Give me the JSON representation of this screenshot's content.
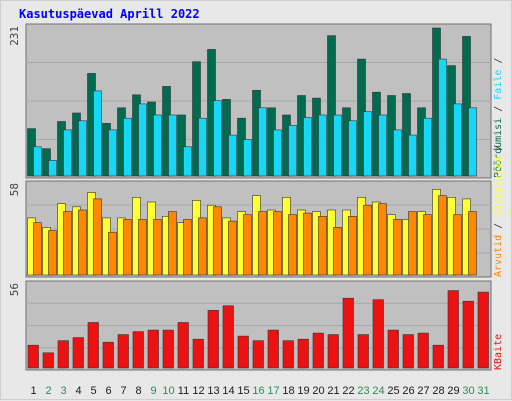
{
  "title": "Kasutuspäevad Aprill 2022",
  "colors": {
    "panel_bg": "#c0c0c0",
    "hits_dark": "#006b4f",
    "files": "#17d7f7",
    "pages_yellow": "#ffff33",
    "visits_orange": "#ff8800",
    "kbytes_red": "#ee1111",
    "weekday_label": "#1a6b1a",
    "weekend_label": "#1a7a3a",
    "title": "#0000ff"
  },
  "chart_data": [
    {
      "type": "bar",
      "panel": "hits-files",
      "ymax_label": "231",
      "ylim": [
        0,
        231
      ],
      "categories": [
        "1",
        "2",
        "3",
        "4",
        "5",
        "6",
        "7",
        "8",
        "9",
        "10",
        "11",
        "12",
        "13",
        "14",
        "15",
        "16",
        "17",
        "18",
        "19",
        "20",
        "21",
        "22",
        "23",
        "24",
        "25",
        "26",
        "27",
        "28",
        "29",
        "30",
        "31"
      ],
      "series": [
        {
          "name": "Pöördumisi",
          "color": "#006b4f",
          "values": [
            73,
            42,
            84,
            97,
            158,
            81,
            105,
            125,
            114,
            138,
            94,
            176,
            195,
            118,
            89,
            132,
            105,
            94,
            124,
            120,
            216,
            105,
            180,
            129,
            124,
            127,
            105,
            229,
            170,
            215,
            0
          ]
        },
        {
          "name": "Faile",
          "color": "#17d7f7",
          "values": [
            45,
            24,
            71,
            85,
            131,
            71,
            89,
            111,
            94,
            94,
            45,
            89,
            116,
            63,
            56,
            105,
            71,
            78,
            90,
            94,
            94,
            85,
            99,
            94,
            71,
            63,
            89,
            180,
            111,
            105,
            0
          ]
        }
      ],
      "right_label": [
        "Pöördumisi",
        " / ",
        "Faile",
        " / "
      ]
    },
    {
      "type": "bar",
      "panel": "pages-visits",
      "ymax_label": "58",
      "ylim": [
        0,
        58
      ],
      "categories": [
        "1",
        "2",
        "3",
        "4",
        "5",
        "6",
        "7",
        "8",
        "9",
        "10",
        "11",
        "12",
        "13",
        "14",
        "15",
        "16",
        "17",
        "18",
        "19",
        "20",
        "21",
        "22",
        "23",
        "24",
        "25",
        "26",
        "27",
        "28",
        "29",
        "30",
        "31"
      ],
      "series": [
        {
          "name": "Külastajad",
          "color": "#ffff33",
          "values": [
            36,
            30,
            45,
            43,
            52,
            36,
            36,
            49,
            46,
            37,
            33,
            47,
            44,
            36,
            40,
            50,
            41,
            49,
            41,
            40,
            41,
            41,
            49,
            46,
            38,
            35,
            40,
            54,
            49,
            48,
            0
          ]
        },
        {
          "name": "Arvutid",
          "color": "#ff8800",
          "values": [
            33,
            28,
            40,
            41,
            48,
            27,
            35,
            35,
            35,
            40,
            35,
            36,
            43,
            34,
            38,
            40,
            40,
            38,
            39,
            37,
            30,
            37,
            44,
            45,
            35,
            40,
            38,
            50,
            38,
            40,
            0
          ]
        }
      ],
      "right_label": [
        "Arvutid",
        " / ",
        "Külastajad",
        " / "
      ]
    },
    {
      "type": "bar",
      "panel": "kbytes",
      "ymax_label": "56",
      "ylim": [
        0,
        56
      ],
      "categories": [
        "1",
        "2",
        "3",
        "4",
        "5",
        "6",
        "7",
        "8",
        "9",
        "10",
        "11",
        "12",
        "13",
        "14",
        "15",
        "16",
        "17",
        "18",
        "19",
        "20",
        "21",
        "22",
        "23",
        "24",
        "25",
        "26",
        "27",
        "28",
        "29",
        "30",
        "31"
      ],
      "series": [
        {
          "name": "KBaite",
          "color": "#ee1111",
          "values": [
            15,
            10,
            18,
            20,
            30,
            17,
            22,
            24,
            25,
            25,
            30,
            19,
            38,
            41,
            21,
            18,
            25,
            18,
            19,
            23,
            22,
            46,
            22,
            45,
            25,
            22,
            23,
            15,
            51,
            44,
            50
          ]
        }
      ],
      "right_label": [
        "KBaite"
      ]
    }
  ],
  "weekend_days": [
    "2",
    "3",
    "9",
    "10",
    "16",
    "17",
    "23",
    "24",
    "30",
    "31"
  ]
}
